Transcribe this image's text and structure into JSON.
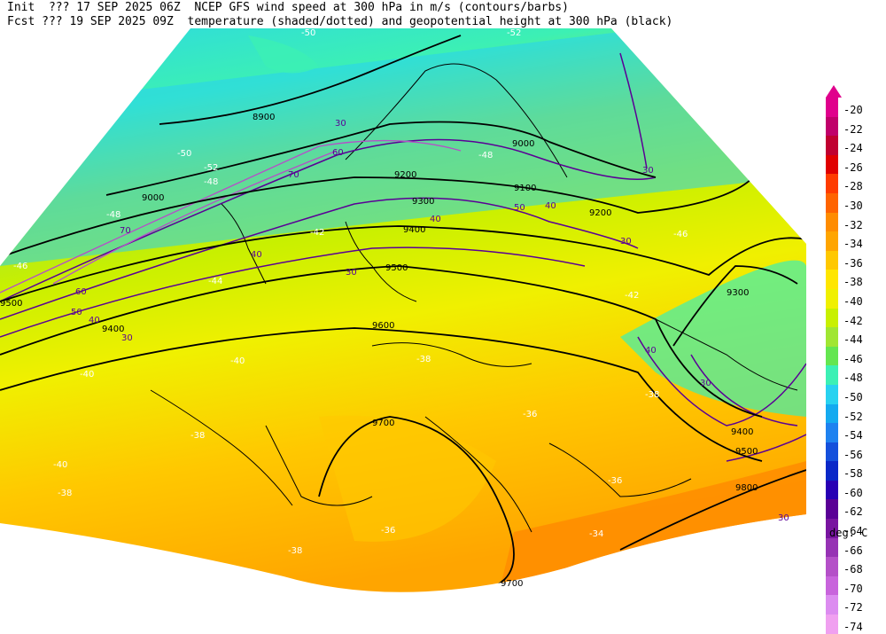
{
  "header": {
    "line1": "Init  ??? 17 SEP 2025 06Z  NCEP GFS wind speed at 300 hPa in m/s (contours/barbs)",
    "line2": "Fcst ??? 19 SEP 2025 09Z  temperature (shaded/dotted) and geopotential height at 300 hPa (black)"
  },
  "colorbar": {
    "levels": [
      {
        "label": "-20",
        "color": "#e0008c"
      },
      {
        "label": "-22",
        "color": "#c0006a"
      },
      {
        "label": "-24",
        "color": "#c00030"
      },
      {
        "label": "-26",
        "color": "#e00000"
      },
      {
        "label": "-28",
        "color": "#ff3c00"
      },
      {
        "label": "-30",
        "color": "#ff6400"
      },
      {
        "label": "-32",
        "color": "#ff8c00"
      },
      {
        "label": "-34",
        "color": "#ffa500"
      },
      {
        "label": "-36",
        "color": "#ffc800"
      },
      {
        "label": "-38",
        "color": "#ffe600"
      },
      {
        "label": "-40",
        "color": "#f0f000"
      },
      {
        "label": "-42",
        "color": "#c8f000"
      },
      {
        "label": "-44",
        "color": "#a0e632"
      },
      {
        "label": "-46",
        "color": "#64e650"
      },
      {
        "label": "-48",
        "color": "#3cf0b4"
      },
      {
        "label": "-50",
        "color": "#28d2f0"
      },
      {
        "label": "-52",
        "color": "#14aaf0"
      },
      {
        "label": "-54",
        "color": "#1e82f0"
      },
      {
        "label": "-56",
        "color": "#1450dc"
      },
      {
        "label": "-58",
        "color": "#0a28c8"
      },
      {
        "label": "-60",
        "color": "#2800b4"
      },
      {
        "label": "-62",
        "color": "#5a0096"
      },
      {
        "label": "-64",
        "color": "#7814a0"
      },
      {
        "label": "-66",
        "color": "#9632b4"
      },
      {
        "label": "-68",
        "color": "#b450c8"
      },
      {
        "label": "-70",
        "color": "#c864dc"
      },
      {
        "label": "-72",
        "color": "#dc8cf0"
      },
      {
        "label": "-74",
        "color": "#f0a0f0"
      }
    ],
    "units": "deg. C"
  },
  "map": {
    "height_labels": [
      "8900",
      "9000",
      "9000",
      "9100",
      "9200",
      "9200",
      "9300",
      "9300",
      "9400",
      "9400",
      "9500",
      "9500",
      "9600",
      "9700",
      "9700",
      "9800",
      "9400",
      "9500"
    ],
    "wind_labels": [
      "30",
      "30",
      "40",
      "40",
      "50",
      "60",
      "70",
      "30",
      "40",
      "50",
      "60",
      "30",
      "40",
      "30",
      "30",
      "30",
      "40",
      "70"
    ],
    "temp_labels": [
      "-50",
      "-52",
      "-50",
      "-52",
      "-48",
      "-48",
      "-48",
      "-46",
      "-46",
      "-44",
      "-42",
      "-42",
      "-40",
      "-40",
      "-40",
      "-38",
      "-38",
      "-38",
      "-36",
      "-36",
      "-34",
      "-36",
      "-38",
      "-38"
    ]
  }
}
